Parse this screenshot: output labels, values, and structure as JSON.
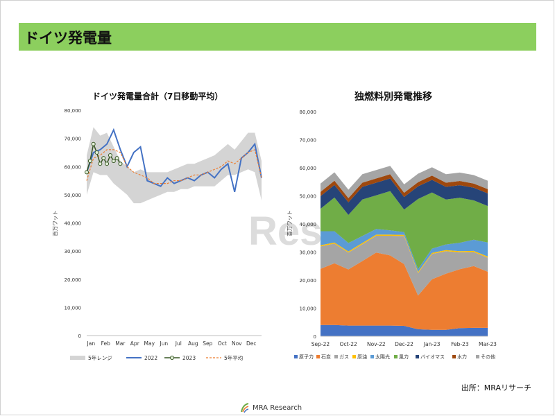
{
  "page": {
    "title": "ドイツ発電量",
    "source": "出所：MRAリサーチ",
    "logo_text": "MRA Research",
    "watermark": "Rese"
  },
  "colors": {
    "title_bar": "#8ccf5e",
    "range": "#d4d4d4",
    "y2022": "#4472c4",
    "y2023": "#375623",
    "avg5": "#ed7d31",
    "原子力": "#4472c4",
    "石炭": "#ed7d31",
    "ガス": "#a5a5a5",
    "原油": "#ffc000",
    "太陽光": "#5b9bd5",
    "風力": "#70ad47",
    "バイオマス": "#264478",
    "水力": "#9e480e",
    "その他": "#a5a5a5"
  },
  "chart_data": [
    {
      "type": "line",
      "title": "ドイツ発電量合計（7日移動平均）",
      "ylabel": "百万ワット",
      "ylim": [
        0,
        80000
      ],
      "yticks": [
        "0",
        "10,000",
        "20,000",
        "30,000",
        "40,000",
        "50,000",
        "60,000",
        "70,000",
        "80,000"
      ],
      "xticks": [
        "Jan",
        "Feb",
        "Mar",
        "Apr",
        "May",
        "Jun",
        "Jul",
        "Aug",
        "Sep",
        "Oct",
        "Nov",
        "Dec"
      ],
      "x_weeks": [
        0,
        2,
        4,
        6,
        8,
        10,
        12,
        14,
        16,
        18,
        20,
        22,
        24,
        26,
        28,
        30,
        32,
        34,
        36,
        38,
        40,
        42,
        44,
        46,
        48,
        50,
        52
      ],
      "legend": [
        "5年レンジ",
        "2022",
        "2023",
        "5年平均"
      ],
      "range_low": [
        50000,
        58000,
        57000,
        57000,
        54000,
        52000,
        50000,
        47000,
        47000,
        48000,
        49000,
        50000,
        51000,
        51000,
        52000,
        52000,
        53000,
        53000,
        53000,
        53000,
        55000,
        57000,
        57000,
        58000,
        59000,
        58000,
        48000
      ],
      "range_high": [
        64000,
        74000,
        71000,
        72000,
        67000,
        62000,
        60000,
        58000,
        59000,
        58000,
        58000,
        58000,
        58000,
        59000,
        60000,
        61000,
        61000,
        62000,
        63000,
        64000,
        66000,
        68000,
        66000,
        69000,
        72000,
        72000,
        62000
      ],
      "series": [
        {
          "name": "2022",
          "values": [
            58000,
            65000,
            66000,
            68000,
            73000,
            66000,
            60000,
            65000,
            67000,
            55000,
            54000,
            53000,
            56000,
            54000,
            55000,
            56000,
            55000,
            57000,
            58000,
            56000,
            59000,
            61000,
            51000,
            63000,
            65000,
            68000,
            56000
          ]
        },
        {
          "name": "5年平均",
          "values": [
            55000,
            63000,
            64000,
            66000,
            66000,
            65000,
            60000,
            58000,
            57000,
            56000,
            54000,
            54000,
            54000,
            55000,
            55000,
            56000,
            57000,
            57000,
            58000,
            59000,
            60000,
            62000,
            61000,
            63000,
            65000,
            66000,
            56000
          ]
        }
      ],
      "series_2023": {
        "name": "2023",
        "x_weeks": [
          0,
          1,
          2,
          3,
          4,
          5,
          6,
          7,
          8,
          9,
          10
        ],
        "values": [
          58000,
          62000,
          68000,
          65000,
          61000,
          63000,
          61000,
          64000,
          62000,
          63000,
          61000
        ]
      }
    },
    {
      "type": "area",
      "title": "独燃料別発電推移",
      "ylabel": "百万ワット",
      "ylim": [
        0,
        80000
      ],
      "yticks": [
        "0",
        "10,000",
        "20,000",
        "30,000",
        "40,000",
        "50,000",
        "60,000",
        "70,000",
        "80,000"
      ],
      "xticks": [
        "Sep-22",
        "Oct-22",
        "Nov-22",
        "Dec-22",
        "Jan-23",
        "Feb-23",
        "Mar-23"
      ],
      "x_months": [
        0,
        0.5,
        1,
        1.5,
        2,
        2.5,
        3,
        3.5,
        4,
        4.5,
        5,
        5.5,
        6
      ],
      "legend": [
        "原子力",
        "石炭",
        "ガス",
        "原油",
        "太陽光",
        "風力",
        "バイオマス",
        "水力",
        "その他"
      ],
      "series": [
        {
          "name": "原子力",
          "values": [
            4000,
            4000,
            3800,
            3800,
            3800,
            3800,
            3700,
            2500,
            2300,
            2300,
            2900,
            3000,
            3000
          ]
        },
        {
          "name": "石炭",
          "values": [
            20000,
            22000,
            20000,
            23000,
            26000,
            25000,
            22000,
            12000,
            18000,
            20000,
            21000,
            22000,
            20000
          ]
        },
        {
          "name": "ガス",
          "values": [
            8000,
            7000,
            6000,
            6000,
            6000,
            7000,
            10000,
            8000,
            9000,
            8000,
            6000,
            5000,
            5000
          ]
        },
        {
          "name": "原油",
          "values": [
            400,
            400,
            400,
            400,
            400,
            400,
            400,
            400,
            400,
            400,
            400,
            400,
            400
          ]
        },
        {
          "name": "太陽光",
          "values": [
            5000,
            4000,
            3000,
            2500,
            2000,
            1500,
            1000,
            1000,
            1500,
            2000,
            3000,
            4000,
            5000
          ]
        },
        {
          "name": "風力",
          "values": [
            8000,
            12000,
            10000,
            13000,
            12000,
            14000,
            8000,
            25000,
            20000,
            16000,
            16000,
            14000,
            13000
          ]
        },
        {
          "name": "バイオマス",
          "values": [
            4500,
            4500,
            4500,
            4500,
            4500,
            4500,
            4500,
            4500,
            4500,
            4500,
            4500,
            4500,
            4500
          ]
        },
        {
          "name": "水力",
          "values": [
            1500,
            1500,
            1500,
            1500,
            1500,
            1500,
            1500,
            1500,
            1500,
            1500,
            1500,
            1500,
            1500
          ]
        },
        {
          "name": "その他",
          "values": [
            3000,
            3000,
            3000,
            3000,
            3000,
            3000,
            3000,
            3000,
            3000,
            3000,
            3000,
            3000,
            3000
          ]
        }
      ]
    }
  ]
}
